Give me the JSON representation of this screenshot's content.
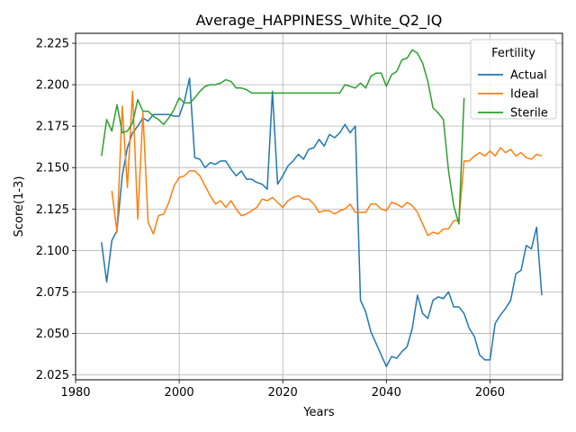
{
  "chart_data": {
    "type": "line",
    "title": "Average_HAPPINESS_White_Q2_IQ",
    "xlabel": "Years",
    "ylabel": "Score(1-3)",
    "xlim": [
      1980,
      2074
    ],
    "ylim": [
      2.022,
      2.231
    ],
    "xticks": [
      1980,
      2000,
      2020,
      2040,
      2060
    ],
    "yticks": [
      2.025,
      2.05,
      2.075,
      2.1,
      2.125,
      2.15,
      2.175,
      2.2,
      2.225
    ],
    "ytick_labels": [
      "2.025",
      "2.050",
      "2.075",
      "2.100",
      "2.125",
      "2.150",
      "2.175",
      "2.200",
      "2.225"
    ],
    "grid": true,
    "legend": {
      "title": "Fertility",
      "placement": "top-right"
    },
    "series": [
      {
        "name": "Actual",
        "color": "#1f77b4",
        "x": [
          1985,
          1986,
          1987,
          1988,
          1989,
          1990,
          1991,
          1992,
          1993,
          1994,
          1995,
          1996,
          1997,
          1998,
          1999,
          2000,
          2001,
          2002,
          2003,
          2004,
          2005,
          2006,
          2007,
          2008,
          2009,
          2010,
          2011,
          2012,
          2013,
          2014,
          2015,
          2016,
          2017,
          2018,
          2019,
          2020,
          2021,
          2022,
          2023,
          2024,
          2025,
          2026,
          2027,
          2028,
          2029,
          2030,
          2031,
          2032,
          2033,
          2034,
          2035,
          2036,
          2037,
          2038,
          2039,
          2040,
          2041,
          2042,
          2043,
          2044,
          2045,
          2046,
          2047,
          2048,
          2049,
          2050,
          2051,
          2052,
          2053,
          2054,
          2055,
          2056,
          2057,
          2058,
          2059,
          2060,
          2061,
          2062,
          2063,
          2064,
          2065,
          2066,
          2067,
          2068,
          2069,
          2070
        ],
        "y": [
          2.105,
          2.081,
          2.106,
          2.112,
          2.145,
          2.162,
          2.171,
          2.175,
          2.18,
          2.178,
          2.182,
          2.182,
          2.182,
          2.182,
          2.181,
          2.181,
          2.19,
          2.204,
          2.156,
          2.155,
          2.15,
          2.153,
          2.152,
          2.154,
          2.154,
          2.149,
          2.145,
          2.148,
          2.143,
          2.143,
          2.141,
          2.14,
          2.137,
          2.196,
          2.14,
          2.145,
          2.151,
          2.154,
          2.158,
          2.155,
          2.161,
          2.162,
          2.167,
          2.163,
          2.17,
          2.168,
          2.171,
          2.176,
          2.171,
          2.175,
          2.07,
          2.063,
          2.051,
          2.044,
          2.037,
          2.03,
          2.036,
          2.035,
          2.039,
          2.042,
          2.053,
          2.073,
          2.062,
          2.059,
          2.07,
          2.072,
          2.071,
          2.075,
          2.066,
          2.066,
          2.062,
          2.053,
          2.048,
          2.037,
          2.034,
          2.034,
          2.056,
          2.061,
          2.065,
          2.07,
          2.086,
          2.088,
          2.103,
          2.101,
          2.114,
          2.073
        ]
      },
      {
        "name": "Ideal",
        "color": "#ff7f0e",
        "x": [
          1987,
          1988,
          1989,
          1990,
          1991,
          1992,
          1993,
          1994,
          1995,
          1996,
          1997,
          1998,
          1999,
          2000,
          2001,
          2002,
          2003,
          2004,
          2005,
          2006,
          2007,
          2008,
          2009,
          2010,
          2011,
          2012,
          2013,
          2014,
          2015,
          2016,
          2017,
          2018,
          2019,
          2020,
          2021,
          2022,
          2023,
          2024,
          2025,
          2026,
          2027,
          2028,
          2029,
          2030,
          2031,
          2032,
          2033,
          2034,
          2035,
          2036,
          2037,
          2038,
          2039,
          2040,
          2041,
          2042,
          2043,
          2044,
          2045,
          2046,
          2047,
          2048,
          2049,
          2050,
          2051,
          2052,
          2053,
          2054,
          2055,
          2056,
          2057,
          2058,
          2059,
          2060,
          2061,
          2062,
          2063,
          2064,
          2065,
          2066,
          2067,
          2068,
          2069,
          2070
        ],
        "y": [
          2.136,
          2.111,
          2.187,
          2.138,
          2.196,
          2.119,
          2.183,
          2.117,
          2.11,
          2.121,
          2.122,
          2.129,
          2.139,
          2.144,
          2.145,
          2.148,
          2.148,
          2.145,
          2.139,
          2.133,
          2.128,
          2.13,
          2.126,
          2.13,
          2.125,
          2.121,
          2.122,
          2.124,
          2.126,
          2.131,
          2.13,
          2.132,
          2.129,
          2.126,
          2.13,
          2.132,
          2.133,
          2.131,
          2.131,
          2.128,
          2.123,
          2.124,
          2.124,
          2.122,
          2.124,
          2.125,
          2.128,
          2.123,
          2.123,
          2.123,
          2.128,
          2.128,
          2.125,
          2.124,
          2.129,
          2.128,
          2.126,
          2.129,
          2.127,
          2.123,
          2.116,
          2.109,
          2.111,
          2.11,
          2.113,
          2.113,
          2.118,
          2.118,
          2.154,
          2.154,
          2.157,
          2.159,
          2.157,
          2.16,
          2.157,
          2.162,
          2.159,
          2.161,
          2.157,
          2.159,
          2.156,
          2.155,
          2.158,
          2.157
        ]
      },
      {
        "name": "Sterile",
        "color": "#2ca02c",
        "x": [
          1985,
          1986,
          1987,
          1988,
          1989,
          1990,
          1991,
          1992,
          1993,
          1994,
          1995,
          1996,
          1997,
          1998,
          1999,
          2000,
          2001,
          2002,
          2003,
          2004,
          2005,
          2006,
          2007,
          2008,
          2009,
          2010,
          2011,
          2012,
          2013,
          2014,
          2015,
          2016,
          2017,
          2018,
          2019,
          2020,
          2021,
          2022,
          2023,
          2024,
          2025,
          2026,
          2027,
          2028,
          2029,
          2030,
          2031,
          2032,
          2033,
          2034,
          2035,
          2036,
          2037,
          2038,
          2039,
          2040,
          2041,
          2042,
          2043,
          2044,
          2045,
          2046,
          2047,
          2048,
          2049,
          2050,
          2051,
          2052,
          2053,
          2054,
          2055
        ],
        "y": [
          2.157,
          2.179,
          2.172,
          2.188,
          2.171,
          2.172,
          2.177,
          2.191,
          2.184,
          2.184,
          2.181,
          2.179,
          2.176,
          2.18,
          2.185,
          2.192,
          2.189,
          2.189,
          2.192,
          2.196,
          2.199,
          2.2,
          2.2,
          2.201,
          2.203,
          2.202,
          2.198,
          2.198,
          2.197,
          2.195,
          2.195,
          2.195,
          2.195,
          2.195,
          2.195,
          2.195,
          2.195,
          2.195,
          2.195,
          2.195,
          2.195,
          2.195,
          2.195,
          2.195,
          2.195,
          2.195,
          2.195,
          2.2,
          2.199,
          2.198,
          2.201,
          2.198,
          2.205,
          2.207,
          2.207,
          2.199,
          2.206,
          2.208,
          2.215,
          2.216,
          2.221,
          2.219,
          2.213,
          2.202,
          2.186,
          2.183,
          2.179,
          2.148,
          2.127,
          2.116,
          2.192
        ]
      }
    ]
  }
}
